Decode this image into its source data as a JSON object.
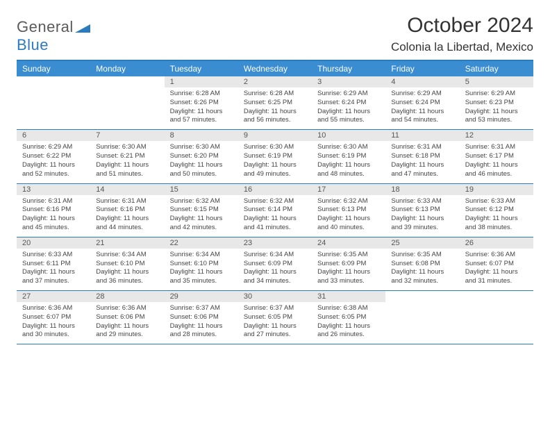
{
  "brand": {
    "word1": "General",
    "word2": "Blue"
  },
  "title": "October 2024",
  "location": "Colonia la Libertad, Mexico",
  "colors": {
    "header_bg": "#3a8dd0",
    "border": "#2b7bbf",
    "daynum_bg": "#e8e8e8",
    "text": "#333333"
  },
  "days_of_week": [
    "Sunday",
    "Monday",
    "Tuesday",
    "Wednesday",
    "Thursday",
    "Friday",
    "Saturday"
  ],
  "weeks": [
    [
      null,
      null,
      {
        "n": "1",
        "sr": "Sunrise: 6:28 AM",
        "ss": "Sunset: 6:26 PM",
        "dl": "Daylight: 11 hours and 57 minutes."
      },
      {
        "n": "2",
        "sr": "Sunrise: 6:28 AM",
        "ss": "Sunset: 6:25 PM",
        "dl": "Daylight: 11 hours and 56 minutes."
      },
      {
        "n": "3",
        "sr": "Sunrise: 6:29 AM",
        "ss": "Sunset: 6:24 PM",
        "dl": "Daylight: 11 hours and 55 minutes."
      },
      {
        "n": "4",
        "sr": "Sunrise: 6:29 AM",
        "ss": "Sunset: 6:24 PM",
        "dl": "Daylight: 11 hours and 54 minutes."
      },
      {
        "n": "5",
        "sr": "Sunrise: 6:29 AM",
        "ss": "Sunset: 6:23 PM",
        "dl": "Daylight: 11 hours and 53 minutes."
      }
    ],
    [
      {
        "n": "6",
        "sr": "Sunrise: 6:29 AM",
        "ss": "Sunset: 6:22 PM",
        "dl": "Daylight: 11 hours and 52 minutes."
      },
      {
        "n": "7",
        "sr": "Sunrise: 6:30 AM",
        "ss": "Sunset: 6:21 PM",
        "dl": "Daylight: 11 hours and 51 minutes."
      },
      {
        "n": "8",
        "sr": "Sunrise: 6:30 AM",
        "ss": "Sunset: 6:20 PM",
        "dl": "Daylight: 11 hours and 50 minutes."
      },
      {
        "n": "9",
        "sr": "Sunrise: 6:30 AM",
        "ss": "Sunset: 6:19 PM",
        "dl": "Daylight: 11 hours and 49 minutes."
      },
      {
        "n": "10",
        "sr": "Sunrise: 6:30 AM",
        "ss": "Sunset: 6:19 PM",
        "dl": "Daylight: 11 hours and 48 minutes."
      },
      {
        "n": "11",
        "sr": "Sunrise: 6:31 AM",
        "ss": "Sunset: 6:18 PM",
        "dl": "Daylight: 11 hours and 47 minutes."
      },
      {
        "n": "12",
        "sr": "Sunrise: 6:31 AM",
        "ss": "Sunset: 6:17 PM",
        "dl": "Daylight: 11 hours and 46 minutes."
      }
    ],
    [
      {
        "n": "13",
        "sr": "Sunrise: 6:31 AM",
        "ss": "Sunset: 6:16 PM",
        "dl": "Daylight: 11 hours and 45 minutes."
      },
      {
        "n": "14",
        "sr": "Sunrise: 6:31 AM",
        "ss": "Sunset: 6:16 PM",
        "dl": "Daylight: 11 hours and 44 minutes."
      },
      {
        "n": "15",
        "sr": "Sunrise: 6:32 AM",
        "ss": "Sunset: 6:15 PM",
        "dl": "Daylight: 11 hours and 42 minutes."
      },
      {
        "n": "16",
        "sr": "Sunrise: 6:32 AM",
        "ss": "Sunset: 6:14 PM",
        "dl": "Daylight: 11 hours and 41 minutes."
      },
      {
        "n": "17",
        "sr": "Sunrise: 6:32 AM",
        "ss": "Sunset: 6:13 PM",
        "dl": "Daylight: 11 hours and 40 minutes."
      },
      {
        "n": "18",
        "sr": "Sunrise: 6:33 AM",
        "ss": "Sunset: 6:13 PM",
        "dl": "Daylight: 11 hours and 39 minutes."
      },
      {
        "n": "19",
        "sr": "Sunrise: 6:33 AM",
        "ss": "Sunset: 6:12 PM",
        "dl": "Daylight: 11 hours and 38 minutes."
      }
    ],
    [
      {
        "n": "20",
        "sr": "Sunrise: 6:33 AM",
        "ss": "Sunset: 6:11 PM",
        "dl": "Daylight: 11 hours and 37 minutes."
      },
      {
        "n": "21",
        "sr": "Sunrise: 6:34 AM",
        "ss": "Sunset: 6:10 PM",
        "dl": "Daylight: 11 hours and 36 minutes."
      },
      {
        "n": "22",
        "sr": "Sunrise: 6:34 AM",
        "ss": "Sunset: 6:10 PM",
        "dl": "Daylight: 11 hours and 35 minutes."
      },
      {
        "n": "23",
        "sr": "Sunrise: 6:34 AM",
        "ss": "Sunset: 6:09 PM",
        "dl": "Daylight: 11 hours and 34 minutes."
      },
      {
        "n": "24",
        "sr": "Sunrise: 6:35 AM",
        "ss": "Sunset: 6:09 PM",
        "dl": "Daylight: 11 hours and 33 minutes."
      },
      {
        "n": "25",
        "sr": "Sunrise: 6:35 AM",
        "ss": "Sunset: 6:08 PM",
        "dl": "Daylight: 11 hours and 32 minutes."
      },
      {
        "n": "26",
        "sr": "Sunrise: 6:36 AM",
        "ss": "Sunset: 6:07 PM",
        "dl": "Daylight: 11 hours and 31 minutes."
      }
    ],
    [
      {
        "n": "27",
        "sr": "Sunrise: 6:36 AM",
        "ss": "Sunset: 6:07 PM",
        "dl": "Daylight: 11 hours and 30 minutes."
      },
      {
        "n": "28",
        "sr": "Sunrise: 6:36 AM",
        "ss": "Sunset: 6:06 PM",
        "dl": "Daylight: 11 hours and 29 minutes."
      },
      {
        "n": "29",
        "sr": "Sunrise: 6:37 AM",
        "ss": "Sunset: 6:06 PM",
        "dl": "Daylight: 11 hours and 28 minutes."
      },
      {
        "n": "30",
        "sr": "Sunrise: 6:37 AM",
        "ss": "Sunset: 6:05 PM",
        "dl": "Daylight: 11 hours and 27 minutes."
      },
      {
        "n": "31",
        "sr": "Sunrise: 6:38 AM",
        "ss": "Sunset: 6:05 PM",
        "dl": "Daylight: 11 hours and 26 minutes."
      },
      null,
      null
    ]
  ]
}
